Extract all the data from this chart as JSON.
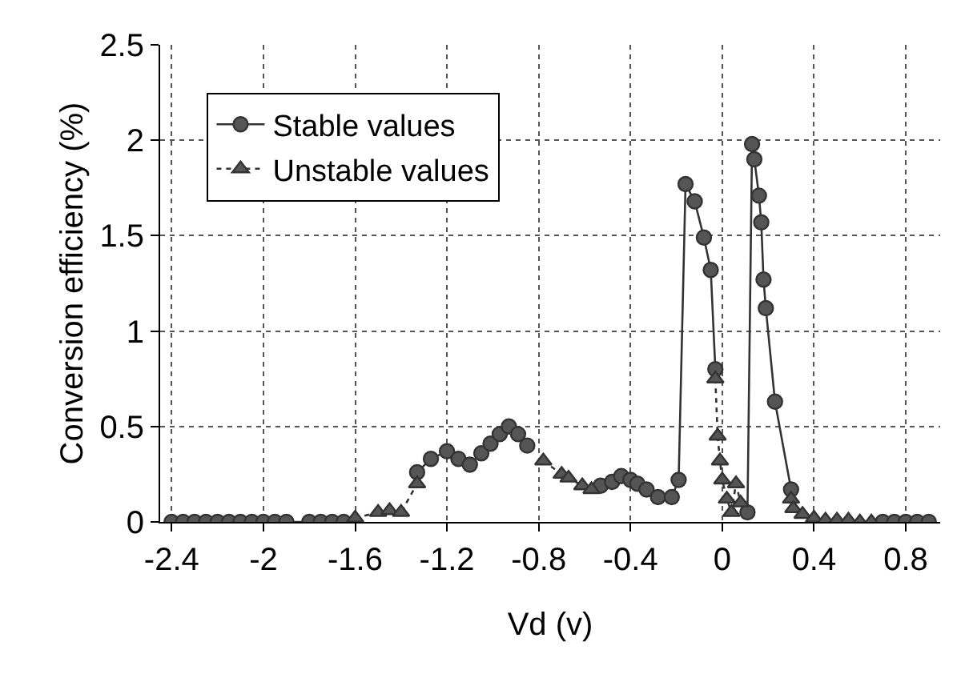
{
  "chart_data": {
    "type": "line",
    "xlabel": "Vd (v)",
    "ylabel": "Conversion efficiency (%)",
    "xlim": [
      -2.45,
      0.95
    ],
    "xticks": [
      -2.4,
      -2,
      -1.6,
      -1.2,
      -0.8,
      -0.4,
      0,
      0.4,
      0.8
    ],
    "ylim": [
      0,
      2.5
    ],
    "yticks": [
      0,
      0.5,
      1,
      1.5,
      2,
      2.5
    ],
    "grid": true,
    "legend": "top left",
    "series": [
      {
        "name": "Stable values",
        "color": "#333333",
        "marker": "circle",
        "line_style": "solid",
        "x": [
          -2.4,
          -2.35,
          -2.3,
          -2.25,
          -2.2,
          -2.15,
          -2.1,
          -2.05,
          -2.0,
          -1.95,
          -1.9,
          -1.8,
          -1.75,
          -1.7,
          -1.65,
          -1.5,
          -1.33,
          -1.27,
          -1.2,
          -1.15,
          -1.1,
          -1.05,
          -1.01,
          -0.97,
          -0.93,
          -0.89,
          -0.85,
          -0.7,
          -0.53,
          -0.48,
          -0.44,
          -0.4,
          -0.37,
          -0.33,
          -0.28,
          -0.22,
          -0.19,
          -0.16,
          -0.12,
          -0.08,
          -0.05,
          -0.03,
          0.05,
          0.11,
          0.13,
          0.14,
          0.16,
          0.17,
          0.18,
          0.19,
          0.23,
          0.3,
          0.5,
          0.7,
          0.75,
          0.8,
          0.85,
          0.9
        ],
        "values": [
          0,
          0,
          0,
          0,
          0,
          0,
          0,
          0,
          0,
          0,
          0,
          0,
          0,
          0,
          0,
          null,
          0.26,
          0.33,
          0.37,
          0.33,
          0.3,
          0.36,
          0.41,
          0.46,
          0.5,
          0.46,
          0.4,
          null,
          0.19,
          0.21,
          0.24,
          0.22,
          0.2,
          0.17,
          0.13,
          0.13,
          0.22,
          1.77,
          1.68,
          1.49,
          1.32,
          0.8,
          null,
          0.05,
          1.98,
          1.9,
          1.71,
          1.57,
          1.27,
          1.12,
          0.63,
          0.17,
          null,
          0,
          0,
          0,
          0,
          0
        ]
      },
      {
        "name": "Unstable values",
        "color": "#333333",
        "marker": "triangle",
        "line_style": "dotted",
        "x": [
          -1.6,
          -1.5,
          -1.45,
          -1.4,
          -1.33,
          -1.1,
          -0.78,
          -0.7,
          -0.67,
          -0.61,
          -0.57,
          -0.3,
          -0.03,
          -0.02,
          -0.01,
          0,
          0.02,
          0.04,
          0.06,
          0.08,
          0.2,
          0.3,
          0.31,
          0.35,
          0.4,
          0.45,
          0.5,
          0.55,
          0.6,
          0.65
        ],
        "values": [
          0.02,
          0.05,
          0.06,
          0.05,
          0.2,
          null,
          0.32,
          0.25,
          0.23,
          0.19,
          0.17,
          null,
          0.75,
          0.45,
          0.32,
          0.22,
          0.12,
          0.05,
          0.2,
          0.1,
          null,
          0.12,
          0.07,
          0.04,
          0.02,
          0.01,
          0.01,
          0.01,
          0,
          0
        ]
      }
    ]
  }
}
